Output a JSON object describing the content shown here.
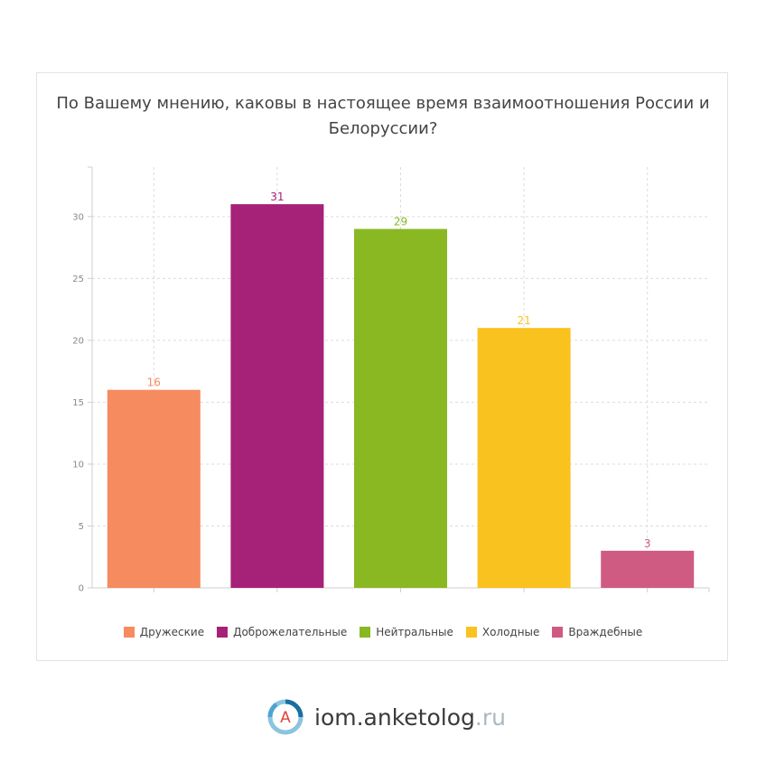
{
  "chart_data": {
    "type": "bar",
    "title": "По Вашему мнению, каковы в настоящее время взаимоотношения России и Белоруссии?",
    "categories": [
      "Дружеские",
      "Доброжелательные",
      "Нейтральные",
      "Холодные",
      "Враждебные"
    ],
    "values": [
      16,
      31,
      29,
      21,
      3
    ],
    "colors": [
      "#f68b5f",
      "#a62178",
      "#8ab823",
      "#fac21e",
      "#d05b82"
    ],
    "yticks": [
      0,
      5,
      10,
      15,
      20,
      25,
      30
    ],
    "ylim": [
      0,
      34
    ],
    "grid": true,
    "legend_position": "bottom"
  },
  "brand": {
    "logo_letter": "A",
    "name": "iom.anketolog",
    "tld": ".ru"
  }
}
